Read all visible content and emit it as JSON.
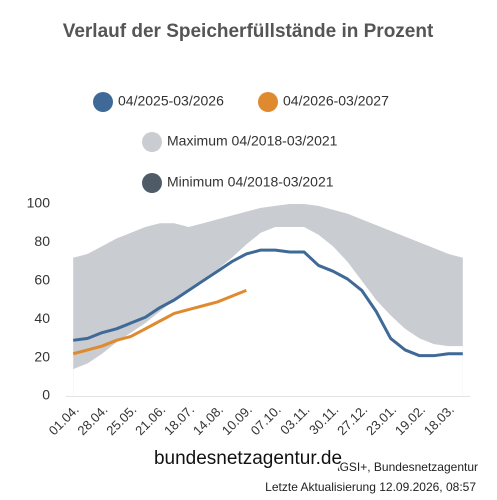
{
  "chart_data": {
    "type": "line",
    "title": "Verlauf der Speicherfüllstände in Prozent",
    "categories": [
      "01.04.",
      null,
      "28.04.",
      null,
      "25.05.",
      null,
      "21.06.",
      null,
      "18.07.",
      null,
      "14.08.",
      null,
      "10.09.",
      null,
      "07.10.",
      null,
      "03.11.",
      null,
      "30.11.",
      null,
      "27.12.",
      null,
      "23.01.",
      null,
      "19.02.",
      null,
      "18.03.",
      null
    ],
    "series": [
      {
        "name": "04/2025-03/2026",
        "color": "#3f6a97",
        "values": [
          29,
          30,
          33,
          35,
          38,
          41,
          46,
          50,
          55,
          60,
          65,
          70,
          74,
          76,
          76,
          75,
          75,
          68,
          65,
          61,
          55,
          44,
          30,
          24,
          21,
          21,
          22,
          22
        ]
      },
      {
        "name": "04/2026-03/2027",
        "color": "#e08a30",
        "values": [
          22,
          24,
          26,
          29,
          31,
          35,
          39,
          43,
          45,
          47,
          49,
          52,
          55,
          null,
          null,
          null,
          null,
          null,
          null,
          null,
          null,
          null,
          null,
          null,
          null,
          null,
          null,
          null
        ]
      },
      {
        "name": "Maximum 04/2018-03/2021",
        "color": "#c9ccd0",
        "area": true,
        "values": [
          72,
          74,
          78,
          82,
          85,
          88,
          90,
          90,
          88,
          90,
          92,
          94,
          96,
          98,
          99,
          100,
          100,
          99,
          97,
          95,
          92,
          89,
          86,
          83,
          80,
          77,
          74,
          72
        ]
      },
      {
        "name": "Minimum 04/2018-03/2021",
        "color": "#4f5c68",
        "area": true,
        "area_fill": "#ffffff",
        "values": [
          14,
          17,
          22,
          28,
          33,
          38,
          44,
          50,
          56,
          61,
          66,
          72,
          79,
          85,
          88,
          88,
          88,
          84,
          78,
          70,
          60,
          50,
          42,
          35,
          30,
          27,
          26,
          26
        ]
      }
    ],
    "ylim": [
      0,
      100
    ],
    "yticks": [
      0,
      20,
      40,
      60,
      80,
      100
    ],
    "grid": false,
    "source": "Quelle: AGSI+, Bundesnetzagentur",
    "updated": "Letzte Aktualisierung 12.09.2026, 08:57",
    "watermark": "bundesnetzagentur.de"
  }
}
